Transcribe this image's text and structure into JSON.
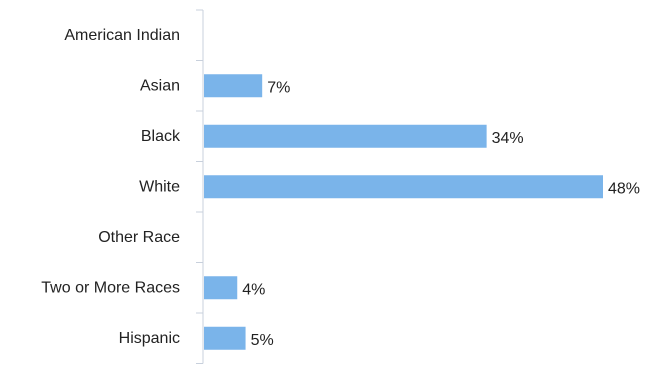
{
  "chart_data": {
    "type": "bar",
    "orientation": "horizontal",
    "categories": [
      "American Indian",
      "Asian",
      "Black",
      "White",
      "Other Race",
      "Two or More Races",
      "Hispanic"
    ],
    "values": [
      0,
      7,
      34,
      48,
      0,
      4,
      5
    ],
    "value_labels": [
      "",
      "7%",
      "34%",
      "48%",
      "",
      "4%",
      "5%"
    ],
    "value_unit": "%",
    "xlim": [
      0,
      48
    ],
    "grid": false,
    "legend": "none",
    "title": "",
    "xlabel": "",
    "ylabel": "",
    "colors": {
      "bar": "#7ab4ea",
      "axis": "#c8d0dc",
      "text": "#222222"
    }
  }
}
